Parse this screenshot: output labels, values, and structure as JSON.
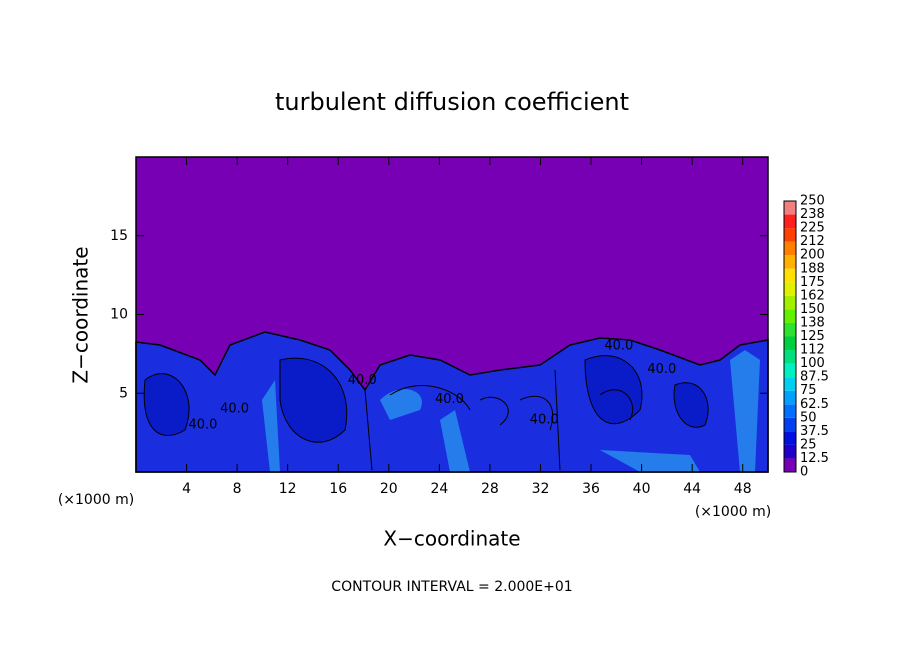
{
  "chart_data": {
    "type": "contour",
    "title": "turbulent diffusion coefficient",
    "x_label": "X−coordinate",
    "y_label": "Z−coordinate",
    "x_unit_left": "(×1000 m)",
    "x_unit_right": "(×1000 m)",
    "footnote": "CONTOUR INTERVAL = 2.000E+01",
    "xlim": [
      0,
      50
    ],
    "ylim": [
      0,
      20
    ],
    "xticks": [
      4,
      8,
      12,
      16,
      20,
      24,
      28,
      32,
      36,
      40,
      44,
      48
    ],
    "yticks": [
      5,
      10,
      15
    ],
    "contour_labels": [
      {
        "x": 5.3,
        "y": 3.0,
        "value": 40,
        "label": "40.0"
      },
      {
        "x": 7.8,
        "y": 4.0,
        "value": 40,
        "label": "40.0"
      },
      {
        "x": 17.9,
        "y": 5.8,
        "value": 40,
        "label": "40.0"
      },
      {
        "x": 24.8,
        "y": 4.6,
        "value": 40,
        "label": "40.0"
      },
      {
        "x": 32.3,
        "y": 3.3,
        "value": 40,
        "label": "40.0"
      },
      {
        "x": 38.2,
        "y": 8.0,
        "value": 40,
        "label": "40.0"
      },
      {
        "x": 41.6,
        "y": 6.5,
        "value": 40,
        "label": "40.0"
      }
    ],
    "colorbar_lim": [
      0,
      250
    ],
    "colorbar_ticks": [
      0,
      12.5,
      25,
      37.5,
      50,
      62.5,
      75,
      87.5,
      100,
      {
        "value": 112.5,
        "label": "112"
      },
      125,
      {
        "value": 137.5,
        "label": "138"
      },
      150,
      {
        "value": 162.5,
        "label": "162"
      },
      175,
      {
        "value": 187.5,
        "label": "188"
      },
      200,
      {
        "value": 212.5,
        "label": "212"
      },
      225,
      {
        "value": 237.5,
        "label": "238"
      },
      250
    ],
    "colorbar_colors": [
      "#7800b4",
      "#2000c8",
      "#0010e0",
      "#0040f0",
      "#0070ff",
      "#00a0ff",
      "#00d0f0",
      "#00f0c0",
      "#00e080",
      "#00d040",
      "#30e030",
      "#60f000",
      "#a0f000",
      "#e0f000",
      "#ffe000",
      "#ffb000",
      "#ff8000",
      "#ff4000",
      "#ff2020",
      "#f08080"
    ]
  }
}
